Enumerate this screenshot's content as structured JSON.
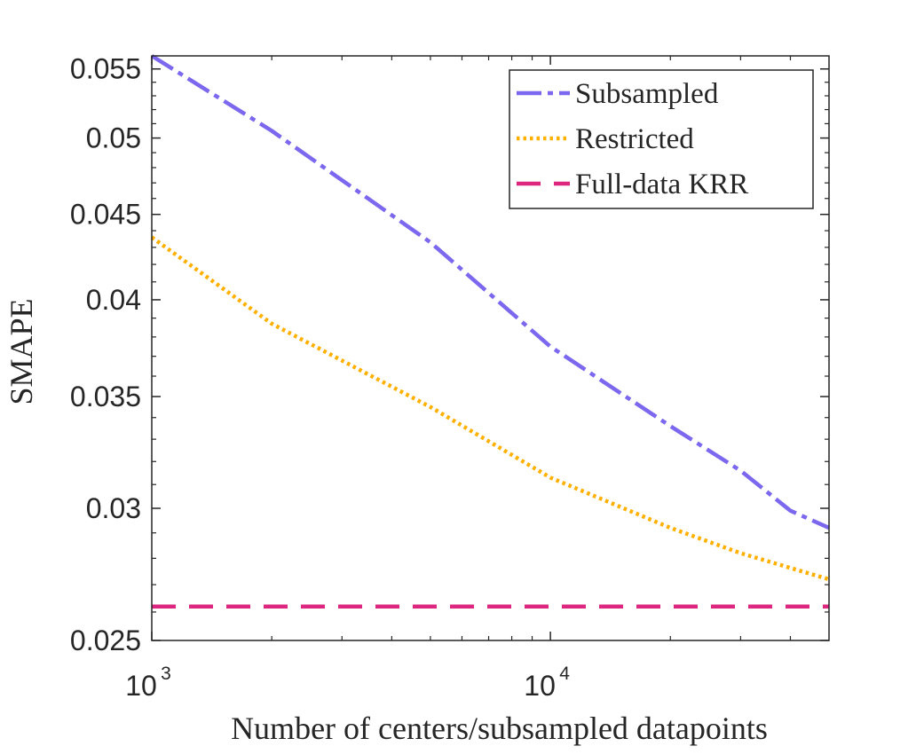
{
  "chart_data": {
    "type": "line",
    "title": "",
    "xlabel": "Number of centers/subsampled datapoints",
    "ylabel": "SMAPE",
    "xscale": "log",
    "yscale": "log",
    "xlim": [
      1000,
      50000
    ],
    "ylim": [
      0.025,
      0.056
    ],
    "xticks": [
      {
        "value": 1000,
        "base": "10",
        "exp": "3"
      },
      {
        "value": 10000,
        "base": "10",
        "exp": "4"
      }
    ],
    "yticks": [
      {
        "value": 0.025,
        "label": "0.025"
      },
      {
        "value": 0.03,
        "label": "0.03"
      },
      {
        "value": 0.035,
        "label": "0.035"
      },
      {
        "value": 0.04,
        "label": "0.04"
      },
      {
        "value": 0.045,
        "label": "0.045"
      },
      {
        "value": 0.05,
        "label": "0.05"
      },
      {
        "value": 0.055,
        "label": "0.055"
      }
    ],
    "legend_position": "top-right",
    "series": [
      {
        "name": "Subsampled",
        "color": "#7B68EE",
        "style": "dash-dot",
        "x": [
          1000,
          2000,
          5000,
          10000,
          20000,
          30000,
          40000,
          50000
        ],
        "y": [
          0.056,
          0.0505,
          0.0433,
          0.0375,
          0.0336,
          0.0316,
          0.0299,
          0.0292
        ]
      },
      {
        "name": "Restricted",
        "color": "#FFB000",
        "style": "dotted",
        "x": [
          1000,
          2000,
          5000,
          10000,
          20000,
          30000,
          50000
        ],
        "y": [
          0.0436,
          0.0387,
          0.0345,
          0.0313,
          0.0292,
          0.0282,
          0.0272
        ]
      },
      {
        "name": "Full-data KRR",
        "color": "#DC267F",
        "style": "dashed",
        "x": [
          1000,
          50000
        ],
        "y": [
          0.0262,
          0.0262
        ]
      }
    ]
  }
}
